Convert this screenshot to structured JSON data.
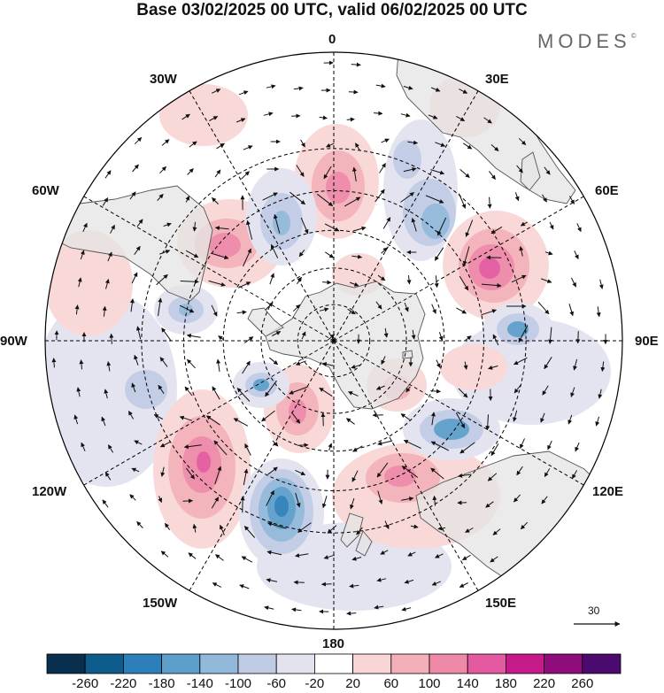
{
  "title": "Base 03/02/2025 00 UTC, valid 06/02/2025 00 UTC",
  "brand": {
    "text": "MODES",
    "mark": "©"
  },
  "longitude_labels": [
    "0",
    "30E",
    "60E",
    "90E",
    "120E",
    "150E",
    "180",
    "150W",
    "120W",
    "90W",
    "60W",
    "30W"
  ],
  "vector_scale": {
    "label": "30",
    "icon": "arrow-right-icon"
  },
  "colorbar": {
    "colors": [
      "#08304e",
      "#0d5c8c",
      "#2c7fb8",
      "#5d9fcb",
      "#92b8da",
      "#c0cbe4",
      "#e3e3f0",
      "#ffffff",
      "#f9d6d6",
      "#f4b0b8",
      "#ee89a8",
      "#e35aa0",
      "#c51b8a",
      "#8e0d7a",
      "#4b0a6e"
    ],
    "ticks": [
      "-260",
      "-220",
      "-180",
      "-140",
      "-100",
      "-60",
      "-20",
      "20",
      "60",
      "100",
      "140",
      "180",
      "220",
      "260"
    ]
  },
  "map": {
    "projection": "south-polar-stereographic",
    "graticule_latitudes": [
      -80,
      -70,
      -60,
      -50,
      -40
    ],
    "colors": {
      "land": "#e4e4e4",
      "coast": "#555555",
      "grid": "#000000"
    }
  }
}
